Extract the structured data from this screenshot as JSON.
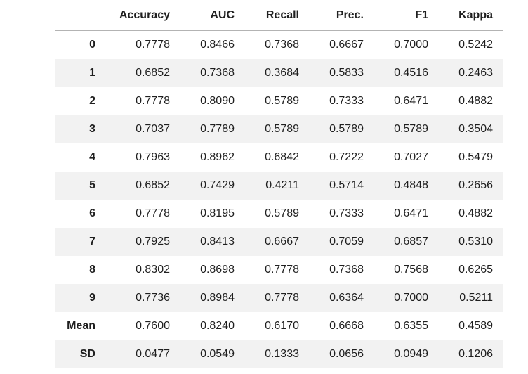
{
  "colors": {
    "background": "#ffffff",
    "text": "#1f1f1f",
    "stripe": "#f2f2f2",
    "header_border": "#b3b3b3"
  },
  "chart_data": {
    "type": "table",
    "title": "",
    "columns": [
      "",
      "Accuracy",
      "AUC",
      "Recall",
      "Prec.",
      "F1",
      "Kappa"
    ],
    "rows": [
      {
        "index": "0",
        "values": [
          "0.7778",
          "0.8466",
          "0.7368",
          "0.6667",
          "0.7000",
          "0.5242"
        ]
      },
      {
        "index": "1",
        "values": [
          "0.6852",
          "0.7368",
          "0.3684",
          "0.5833",
          "0.4516",
          "0.2463"
        ]
      },
      {
        "index": "2",
        "values": [
          "0.7778",
          "0.8090",
          "0.5789",
          "0.7333",
          "0.6471",
          "0.4882"
        ]
      },
      {
        "index": "3",
        "values": [
          "0.7037",
          "0.7789",
          "0.5789",
          "0.5789",
          "0.5789",
          "0.3504"
        ]
      },
      {
        "index": "4",
        "values": [
          "0.7963",
          "0.8962",
          "0.6842",
          "0.7222",
          "0.7027",
          "0.5479"
        ]
      },
      {
        "index": "5",
        "values": [
          "0.6852",
          "0.7429",
          "0.4211",
          "0.5714",
          "0.4848",
          "0.2656"
        ]
      },
      {
        "index": "6",
        "values": [
          "0.7778",
          "0.8195",
          "0.5789",
          "0.7333",
          "0.6471",
          "0.4882"
        ]
      },
      {
        "index": "7",
        "values": [
          "0.7925",
          "0.8413",
          "0.6667",
          "0.7059",
          "0.6857",
          "0.5310"
        ]
      },
      {
        "index": "8",
        "values": [
          "0.8302",
          "0.8698",
          "0.7778",
          "0.7368",
          "0.7568",
          "0.6265"
        ]
      },
      {
        "index": "9",
        "values": [
          "0.7736",
          "0.8984",
          "0.7778",
          "0.6364",
          "0.7000",
          "0.5211"
        ]
      },
      {
        "index": "Mean",
        "values": [
          "0.7600",
          "0.8240",
          "0.6170",
          "0.6668",
          "0.6355",
          "0.4589"
        ]
      },
      {
        "index": "SD",
        "values": [
          "0.0477",
          "0.0549",
          "0.1333",
          "0.0656",
          "0.0949",
          "0.1206"
        ]
      }
    ]
  }
}
